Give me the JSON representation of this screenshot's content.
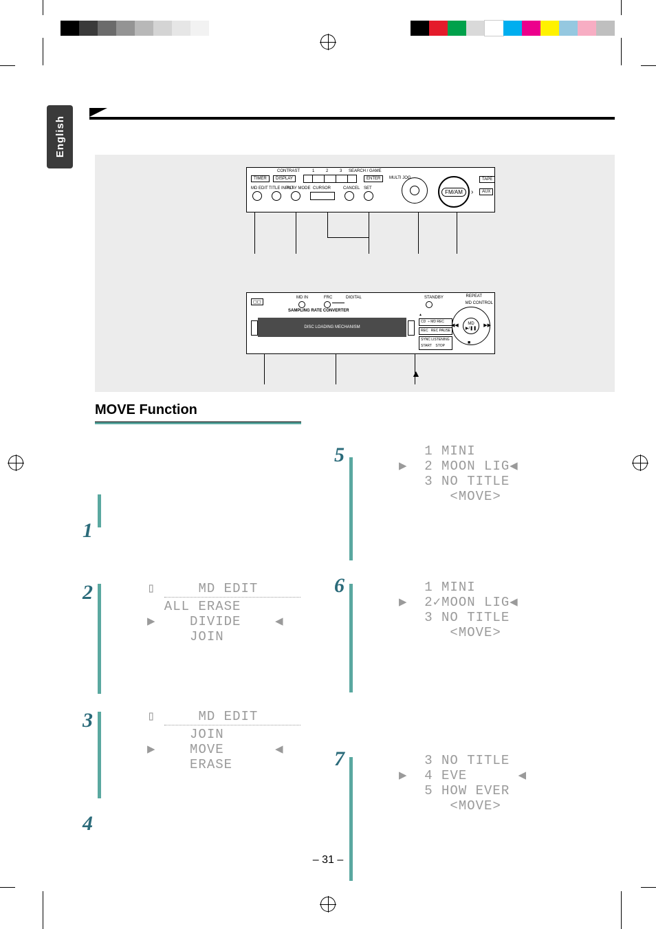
{
  "colorbars": {
    "left": [
      "#000000",
      "#3a3a3a",
      "#6b6b6b",
      "#949494",
      "#b8b8b8",
      "#d4d4d4",
      "#e6e6e6",
      "#f2f2f2"
    ],
    "right": [
      "#000000",
      "#e41b2b",
      "#00a14b",
      "#d9d9d9",
      "#ffffff",
      "#00aeef",
      "#ec008c",
      "#fff200",
      "#95c8e0",
      "#f7adc3",
      "#bfbfbf"
    ]
  },
  "side_tab": "English",
  "section_title": "MOVE Function",
  "diagram": {
    "top_labels": [
      "CONTRAST",
      "1",
      "2",
      "3",
      "SEARCH / GAME"
    ],
    "top_buttons": [
      "TIMER",
      "DISPLAY"
    ],
    "top_knob_labels": [
      "MD EDIT",
      "TITLE INPUT",
      "PLAY MODE",
      "CURSOR",
      "CANCEL",
      "SET"
    ],
    "top_right_labels": [
      "MULTI JOG",
      "FM/AM",
      "TAPE",
      "AUX"
    ],
    "bottom_top_labels": [
      "MD IN",
      "FRC",
      "DIGITAL",
      "STANDBY"
    ],
    "bottom_text1": "SAMPLING RATE CONVERTER",
    "bottom_text2": "DISC LOADING MECHANISM",
    "bottom_right": [
      "MD CONTROL",
      "REPEAT",
      "MD",
      "CD",
      "MD REC",
      "REC",
      "REC PAUSE",
      "SYNC LISTENING START",
      "STOP"
    ],
    "eject": "▲"
  },
  "lcd_screens": {
    "edit1": {
      "header": "    MD EDIT     ",
      "lines": [
        "  ALL ERASE",
        "▶    DIVIDE    ◀",
        "     JOIN"
      ]
    },
    "edit2": {
      "header": "    MD EDIT     ",
      "lines": [
        "     JOIN",
        "▶    MOVE      ◀",
        "     ERASE"
      ]
    },
    "move1": {
      "lines": [
        "   1 MINI",
        "▶  2 MOON LIG◀",
        "   3 NO TITLE",
        "      <MOVE>"
      ]
    },
    "move2": {
      "lines": [
        "   1 MINI",
        "▶  2✓MOON LIG◀",
        "   3 NO TITLE",
        "      <MOVE>"
      ]
    },
    "move3": {
      "lines": [
        "   3 NO TITLE",
        "▶  4 EVE      ◀",
        "   5 HOW EVER",
        "      <MOVE>"
      ]
    }
  },
  "page_number": "– 31 –"
}
